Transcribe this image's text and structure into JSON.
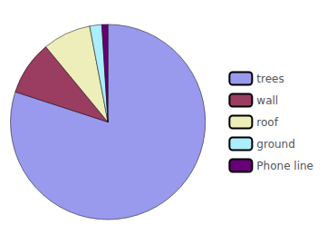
{
  "chart_data": {
    "type": "pie",
    "categories": [
      "trees",
      "wall",
      "roof",
      "ground",
      "Phone line"
    ],
    "values": [
      80,
      9,
      8,
      2,
      1
    ],
    "colors": [
      "#9999ee",
      "#9a3d60",
      "#eeeebb",
      "#aaeeff",
      "#660077"
    ],
    "legend": "right"
  }
}
